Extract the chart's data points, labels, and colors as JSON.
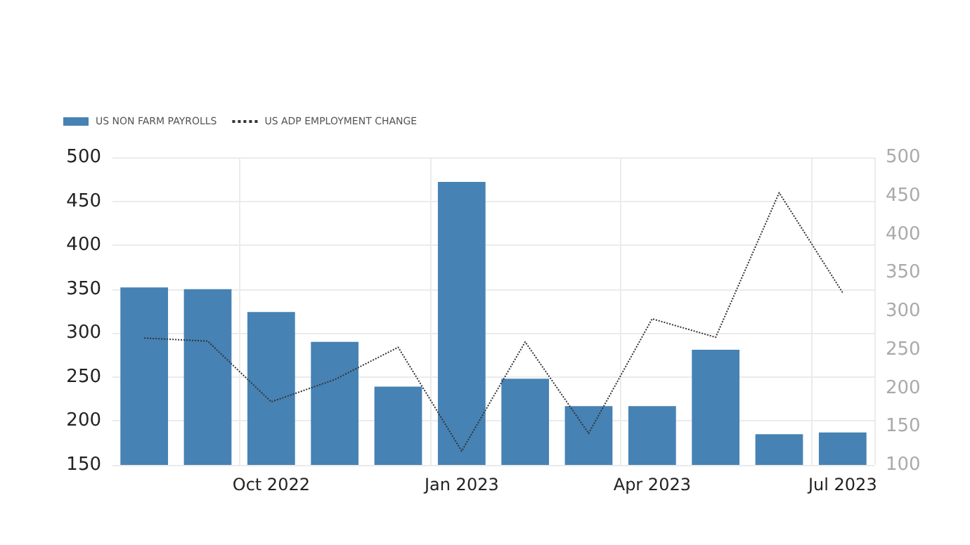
{
  "chart_data": {
    "type": "bar",
    "categories": [
      null,
      null,
      "Oct 2022",
      null,
      null,
      "Jan 2023",
      null,
      null,
      "Apr 2023",
      null,
      null,
      "Jul 2023"
    ],
    "series": [
      {
        "name": "US NON FARM PAYROLLS",
        "color": "#4682b4",
        "values": [
          352,
          350,
          324,
          290,
          239,
          472,
          248,
          217,
          217,
          281,
          185,
          187
        ]
      },
      {
        "name": "US ADP EMPLOYMENT CHANGE",
        "type": "line",
        "axis": "y2",
        "color": "#333333",
        "line_style": "dotted",
        "marker": "none",
        "values": [
          265,
          261,
          182,
          211,
          253,
          118,
          260,
          141,
          290,
          266,
          454,
          324
        ]
      }
    ],
    "ylim": [
      150,
      500
    ],
    "yticks": [
      150,
      200,
      250,
      300,
      350,
      400,
      450,
      500
    ],
    "y2lim": [
      100,
      500
    ],
    "y2ticks": [
      100,
      150,
      200,
      250,
      300,
      350,
      400,
      450,
      500
    ],
    "grid": true,
    "legend": "top left"
  }
}
